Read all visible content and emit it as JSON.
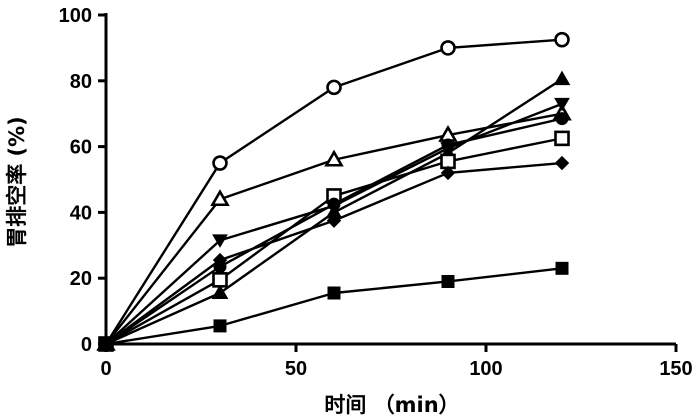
{
  "chart_data": {
    "type": "line",
    "xlabel": "时间 （min）",
    "ylabel": "胃排空率 (%)",
    "xlim": [
      0,
      150
    ],
    "ylim": [
      0,
      100
    ],
    "xticks": [
      0,
      50,
      100,
      150
    ],
    "yticks": [
      0,
      20,
      40,
      60,
      80,
      100
    ],
    "grid": false,
    "x": [
      0,
      30,
      60,
      90,
      120
    ],
    "series": [
      {
        "marker": "circle-open",
        "values": [
          0,
          55,
          78,
          90,
          92.5
        ]
      },
      {
        "marker": "triangle-up-open",
        "values": [
          0,
          44,
          56,
          63.5,
          70
        ]
      },
      {
        "marker": "triangle-up-filled",
        "values": [
          0,
          15.5,
          40,
          58,
          80.5
        ]
      },
      {
        "marker": "triangle-down-filled",
        "values": [
          0,
          31.5,
          42,
          59.5,
          73
        ]
      },
      {
        "marker": "square-open",
        "values": [
          0,
          19.5,
          45,
          55.5,
          62.5
        ]
      },
      {
        "marker": "circle-filled",
        "values": [
          0,
          23.5,
          42.5,
          60.5,
          68.5
        ]
      },
      {
        "marker": "diamond-filled",
        "values": [
          0,
          25.5,
          37.5,
          52,
          55
        ]
      },
      {
        "marker": "square-filled",
        "values": [
          0,
          5.5,
          15.5,
          19,
          23
        ]
      }
    ]
  }
}
